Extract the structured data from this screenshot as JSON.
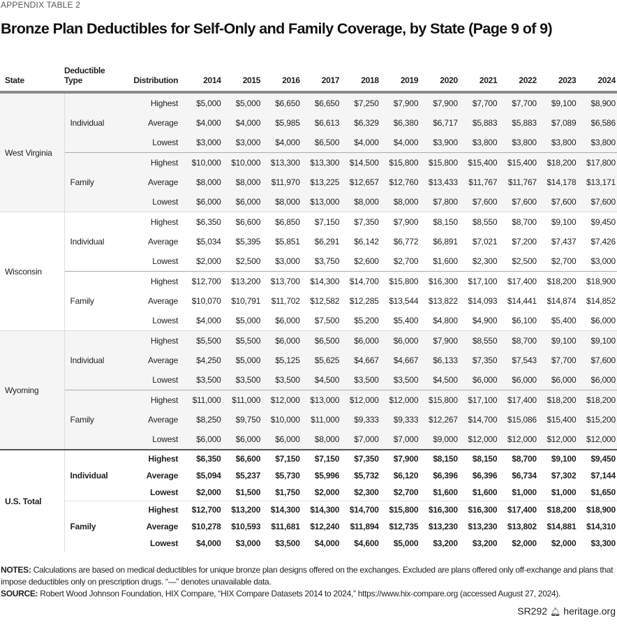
{
  "appendix_label": "APPENDIX TABLE 2",
  "title": "Bronze Plan Deductibles for Self-Only and Family Coverage, by State (Page 9 of 9)",
  "table": {
    "headers": {
      "state": "State",
      "deductible_type_1": "Deductible",
      "deductible_type_2": "Type",
      "distribution": "Distribution",
      "years": [
        "2014",
        "2015",
        "2016",
        "2017",
        "2018",
        "2019",
        "2020",
        "2021",
        "2022",
        "2023",
        "2024"
      ]
    },
    "states": [
      {
        "name": "West Virginia",
        "groups": [
          {
            "type": "Individual",
            "rows": [
              {
                "dist": "Highest",
                "values": [
                  "$5,000",
                  "$5,000",
                  "$6,650",
                  "$6,650",
                  "$7,250",
                  "$7,900",
                  "$7,900",
                  "$7,700",
                  "$7,700",
                  "$9,100",
                  "$8,900"
                ]
              },
              {
                "dist": "Average",
                "values": [
                  "$4,000",
                  "$4,000",
                  "$5,985",
                  "$6,613",
                  "$6,329",
                  "$6,380",
                  "$6,717",
                  "$5,883",
                  "$5,883",
                  "$7,089",
                  "$6,586"
                ]
              },
              {
                "dist": "Lowest",
                "values": [
                  "$3,000",
                  "$3,000",
                  "$4,000",
                  "$6,500",
                  "$4,000",
                  "$4,000",
                  "$3,900",
                  "$3,800",
                  "$3,800",
                  "$3,800",
                  "$3,800"
                ]
              }
            ]
          },
          {
            "type": "Family",
            "rows": [
              {
                "dist": "Highest",
                "values": [
                  "$10,000",
                  "$10,000",
                  "$13,300",
                  "$13,300",
                  "$14,500",
                  "$15,800",
                  "$15,800",
                  "$15,400",
                  "$15,400",
                  "$18,200",
                  "$17,800"
                ]
              },
              {
                "dist": "Average",
                "values": [
                  "$8,000",
                  "$8,000",
                  "$11,970",
                  "$13,225",
                  "$12,657",
                  "$12,760",
                  "$13,433",
                  "$11,767",
                  "$11,767",
                  "$14,178",
                  "$13,171"
                ]
              },
              {
                "dist": "Lowest",
                "values": [
                  "$6,000",
                  "$6,000",
                  "$8,000",
                  "$13,000",
                  "$8,000",
                  "$8,000",
                  "$7,800",
                  "$7,600",
                  "$7,600",
                  "$7,600",
                  "$7,600"
                ]
              }
            ]
          }
        ]
      },
      {
        "name": "Wisconsin",
        "groups": [
          {
            "type": "Individual",
            "rows": [
              {
                "dist": "Highest",
                "values": [
                  "$6,350",
                  "$6,600",
                  "$6,850",
                  "$7,150",
                  "$7,350",
                  "$7,900",
                  "$8,150",
                  "$8,550",
                  "$8,700",
                  "$9,100",
                  "$9,450"
                ]
              },
              {
                "dist": "Average",
                "values": [
                  "$5,034",
                  "$5,395",
                  "$5,851",
                  "$6,291",
                  "$6,142",
                  "$6,772",
                  "$6,891",
                  "$7,021",
                  "$7,200",
                  "$7,437",
                  "$7,426"
                ]
              },
              {
                "dist": "Lowest",
                "values": [
                  "$2,000",
                  "$2,500",
                  "$3,000",
                  "$3,750",
                  "$2,600",
                  "$2,700",
                  "$1,600",
                  "$2,300",
                  "$2,500",
                  "$2,700",
                  "$3,000"
                ]
              }
            ]
          },
          {
            "type": "Family",
            "rows": [
              {
                "dist": "Highest",
                "values": [
                  "$12,700",
                  "$13,200",
                  "$13,700",
                  "$14,300",
                  "$14,700",
                  "$15,800",
                  "$16,300",
                  "$17,100",
                  "$17,400",
                  "$18,200",
                  "$18,900"
                ]
              },
              {
                "dist": "Average",
                "values": [
                  "$10,070",
                  "$10,791",
                  "$11,702",
                  "$12,582",
                  "$12,285",
                  "$13,544",
                  "$13,822",
                  "$14,093",
                  "$14,441",
                  "$14,874",
                  "$14,852"
                ]
              },
              {
                "dist": "Lowest",
                "values": [
                  "$4,000",
                  "$5,000",
                  "$6,000",
                  "$7,500",
                  "$5,200",
                  "$5,400",
                  "$4,800",
                  "$4,900",
                  "$6,100",
                  "$5,400",
                  "$6,000"
                ]
              }
            ]
          }
        ]
      },
      {
        "name": "Wyoming",
        "groups": [
          {
            "type": "Individual",
            "rows": [
              {
                "dist": "Highest",
                "values": [
                  "$5,500",
                  "$5,500",
                  "$6,000",
                  "$6,500",
                  "$6,000",
                  "$6,000",
                  "$7,900",
                  "$8,550",
                  "$8,700",
                  "$9,100",
                  "$9,100"
                ]
              },
              {
                "dist": "Average",
                "values": [
                  "$4,250",
                  "$5,000",
                  "$5,125",
                  "$5,625",
                  "$4,667",
                  "$4,667",
                  "$6,133",
                  "$7,350",
                  "$7,543",
                  "$7,700",
                  "$7,600"
                ]
              },
              {
                "dist": "Lowest",
                "values": [
                  "$3,500",
                  "$3,500",
                  "$3,500",
                  "$4,500",
                  "$3,500",
                  "$3,500",
                  "$4,500",
                  "$6,000",
                  "$6,000",
                  "$6,000",
                  "$6,000"
                ]
              }
            ]
          },
          {
            "type": "Family",
            "rows": [
              {
                "dist": "Highest",
                "values": [
                  "$11,000",
                  "$11,000",
                  "$12,000",
                  "$13,000",
                  "$12,000",
                  "$12,000",
                  "$15,800",
                  "$17,100",
                  "$17,400",
                  "$18,200",
                  "$18,200"
                ]
              },
              {
                "dist": "Average",
                "values": [
                  "$8,250",
                  "$9,750",
                  "$10,000",
                  "$11,000",
                  "$9,333",
                  "$9,333",
                  "$12,267",
                  "$14,700",
                  "$15,086",
                  "$15,400",
                  "$15,200"
                ]
              },
              {
                "dist": "Lowest",
                "values": [
                  "$6,000",
                  "$6,000",
                  "$6,000",
                  "$8,000",
                  "$7,000",
                  "$7,000",
                  "$9,000",
                  "$12,000",
                  "$12,000",
                  "$12,000",
                  "$12,000"
                ]
              }
            ]
          }
        ]
      },
      {
        "name": "U.S. Total",
        "total": true,
        "groups": [
          {
            "type": "Individual",
            "rows": [
              {
                "dist": "Highest",
                "values": [
                  "$6,350",
                  "$6,600",
                  "$7,150",
                  "$7,150",
                  "$7,350",
                  "$7,900",
                  "$8,150",
                  "$8,150",
                  "$8,700",
                  "$9,100",
                  "$9,450"
                ]
              },
              {
                "dist": "Average",
                "values": [
                  "$5,094",
                  "$5,237",
                  "$5,730",
                  "$5,996",
                  "$5,732",
                  "$6,120",
                  "$6,396",
                  "$6,396",
                  "$6,734",
                  "$7,302",
                  "$7,144"
                ]
              },
              {
                "dist": "Lowest",
                "values": [
                  "$2,000",
                  "$1,500",
                  "$1,750",
                  "$2,000",
                  "$2,300",
                  "$2,700",
                  "$1,600",
                  "$1,600",
                  "$1,000",
                  "$1,000",
                  "$1,650"
                ]
              }
            ]
          },
          {
            "type": "Family",
            "rows": [
              {
                "dist": "Highest",
                "values": [
                  "$12,700",
                  "$13,200",
                  "$14,300",
                  "$14,300",
                  "$14,700",
                  "$15,800",
                  "$16,300",
                  "$16,300",
                  "$17,400",
                  "$18,200",
                  "$18,900"
                ]
              },
              {
                "dist": "Average",
                "values": [
                  "$10,278",
                  "$10,593",
                  "$11,681",
                  "$12,240",
                  "$11,894",
                  "$12,735",
                  "$13,230",
                  "$13,230",
                  "$13,802",
                  "$14,881",
                  "$14,310"
                ]
              },
              {
                "dist": "Lowest",
                "values": [
                  "$4,000",
                  "$3,000",
                  "$3,500",
                  "$4,000",
                  "$4,600",
                  "$5,000",
                  "$3,200",
                  "$3,200",
                  "$2,000",
                  "$2,000",
                  "$3,300"
                ]
              }
            ]
          }
        ]
      }
    ]
  },
  "notes": {
    "notes_label": "NOTES:",
    "notes_text": " Calculations are based on medical deductibles for unique bronze plan designs offered on the exchanges. Excluded are plans offered only off-exchange and plans that impose deductibles only on prescription drugs. “—” denotes unavailable data.",
    "source_label": "SOURCE:",
    "source_text": " Robert Wood Johnson Foundation, HIX Compare, “HIX Compare Datasets 2014 to 2024,” https://www.hix-compare.org (accessed August 27, 2024)."
  },
  "footer": {
    "report_id": "SR292",
    "site": "heritage.org",
    "logo_icon": "liberty-bell-icon"
  }
}
